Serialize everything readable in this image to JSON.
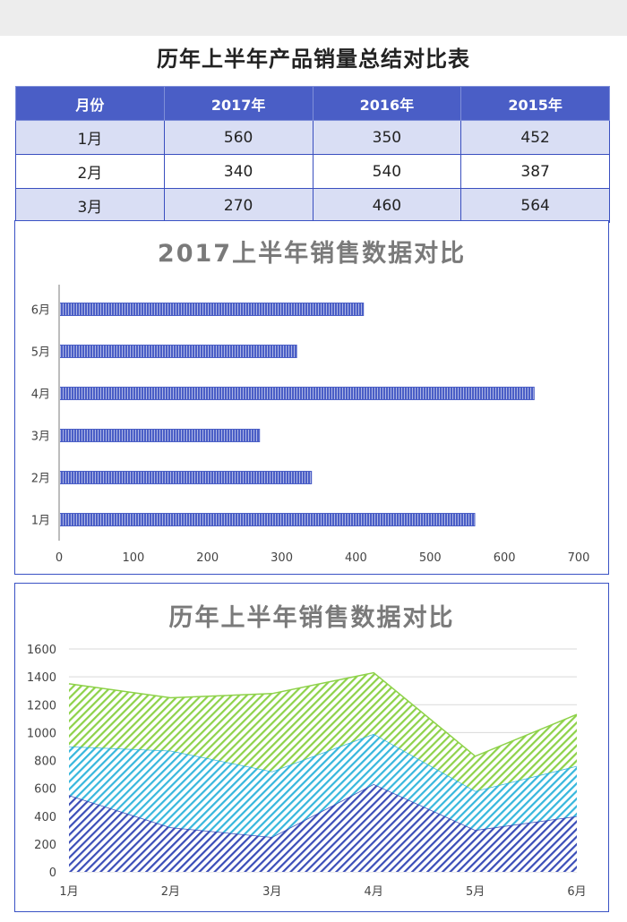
{
  "title": "历年上半年产品销量总结对比表",
  "table": {
    "headers": [
      "月份",
      "2017年",
      "2016年",
      "2015年"
    ],
    "rows": [
      [
        "1月",
        "560",
        "350",
        "452"
      ],
      [
        "2月",
        "340",
        "540",
        "387"
      ],
      [
        "3月",
        "270",
        "460",
        "564"
      ]
    ]
  },
  "chart_data": [
    {
      "type": "bar",
      "orientation": "horizontal",
      "title": "2017上半年销售数据对比",
      "categories": [
        "1月",
        "2月",
        "3月",
        "4月",
        "5月",
        "6月"
      ],
      "values": [
        560,
        340,
        270,
        640,
        320,
        410
      ],
      "xlim": [
        0,
        700
      ],
      "xticks": [
        0,
        100,
        200,
        300,
        400,
        500,
        600,
        700
      ],
      "grid": false,
      "colors": {
        "bar": "#4a5ec6",
        "bar_stripe": "#ffffff",
        "axis": "#bdbdbd"
      }
    },
    {
      "type": "area",
      "stacked": true,
      "title": "历年上半年销售数据对比",
      "categories": [
        "1月",
        "2月",
        "3月",
        "4月",
        "5月",
        "6月"
      ],
      "series": [
        {
          "values": [
            550,
            320,
            250,
            630,
            300,
            400
          ],
          "color": "#3a4db8"
        },
        {
          "values": [
            350,
            550,
            470,
            360,
            280,
            360
          ],
          "color": "#37b7dd"
        },
        {
          "values": [
            450,
            380,
            560,
            440,
            250,
            370
          ],
          "color": "#8ed24a"
        }
      ],
      "ylim": [
        0,
        1600
      ],
      "yticks": [
        0,
        200,
        400,
        600,
        800,
        1000,
        1200,
        1400,
        1600
      ],
      "grid": true,
      "colors": {
        "grid": "#d9d9d9"
      }
    }
  ]
}
